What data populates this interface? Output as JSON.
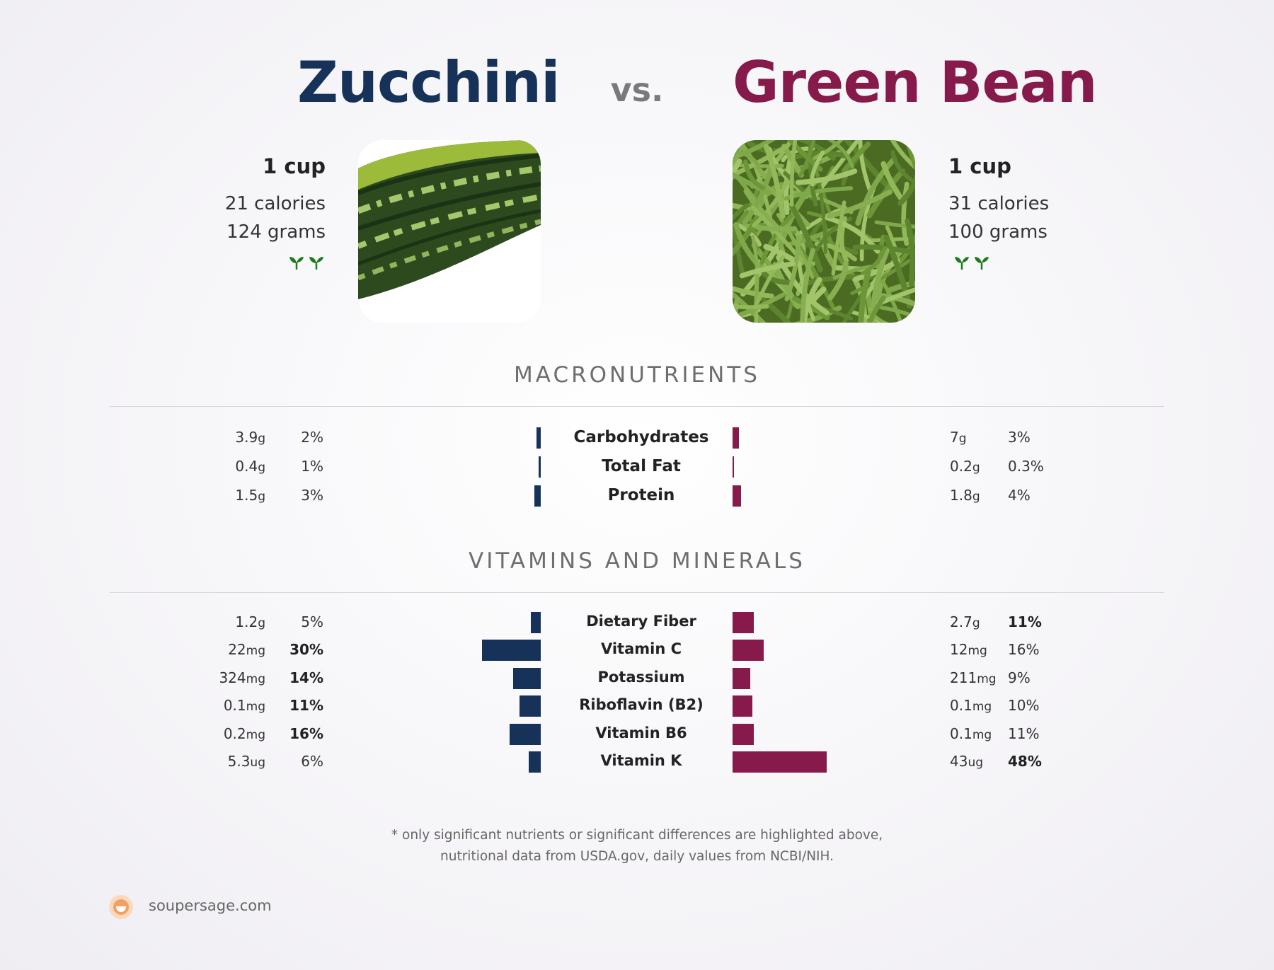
{
  "header": {
    "left_title": "Zucchini",
    "vs": "vs.",
    "right_title": "Green Bean"
  },
  "left_food": {
    "serving": "1 cup",
    "calories": "21 calories",
    "grams": "124 grams",
    "icon": "sprout-icon",
    "color": "#173258"
  },
  "right_food": {
    "serving": "1 cup",
    "calories": "31 calories",
    "grams": "100 grams",
    "icon": "sprout-icon",
    "color": "#851a4b"
  },
  "sections": {
    "macros_title": "MACRONUTRIENTS",
    "vitamins_title": "VITAMINS AND MINERALS"
  },
  "chart_data": [
    {
      "type": "bar",
      "title": "MACRONUTRIENTS",
      "categories": [
        "Carbohydrates",
        "Total Fat",
        "Protein"
      ],
      "series": [
        {
          "name": "Zucchini",
          "amounts": [
            "3.9",
            "0.4",
            "1.5"
          ],
          "units": [
            "g",
            "g",
            "g"
          ],
          "percent_labels": [
            "2%",
            "1%",
            "3%"
          ],
          "values": [
            2,
            1,
            3
          ],
          "bold": [
            false,
            false,
            false
          ]
        },
        {
          "name": "Green Bean",
          "amounts": [
            "7",
            "0.2",
            "1.8"
          ],
          "units": [
            "g",
            "g",
            "g"
          ],
          "percent_labels": [
            "3%",
            "0.3%",
            "4%"
          ],
          "values": [
            3,
            0.3,
            4
          ],
          "bold": [
            false,
            false,
            false
          ]
        }
      ]
    },
    {
      "type": "bar",
      "title": "VITAMINS AND MINERALS",
      "categories": [
        "Dietary Fiber",
        "Vitamin C",
        "Potassium",
        "Riboflavin (B2)",
        "Vitamin B6",
        "Vitamin K"
      ],
      "series": [
        {
          "name": "Zucchini",
          "amounts": [
            "1.2",
            "22",
            "324",
            "0.1",
            "0.2",
            "5.3"
          ],
          "units": [
            "g",
            "mg",
            "mg",
            "mg",
            "mg",
            "ug"
          ],
          "percent_labels": [
            "5%",
            "30%",
            "14%",
            "11%",
            "16%",
            "6%"
          ],
          "values": [
            5,
            30,
            14,
            11,
            16,
            6
          ],
          "bold": [
            false,
            true,
            true,
            true,
            true,
            false
          ]
        },
        {
          "name": "Green Bean",
          "amounts": [
            "2.7",
            "12",
            "211",
            "0.1",
            "0.1",
            "43"
          ],
          "units": [
            "g",
            "mg",
            "mg",
            "mg",
            "mg",
            "ug"
          ],
          "percent_labels": [
            "11%",
            "16%",
            "9%",
            "10%",
            "11%",
            "48%"
          ],
          "values": [
            11,
            16,
            9,
            10,
            11,
            48
          ],
          "bold": [
            true,
            false,
            false,
            false,
            false,
            true
          ]
        }
      ]
    }
  ],
  "footnote": {
    "line1": "* only significant nutrients or significant differences are highlighted above,",
    "line2": "nutritional data from USDA.gov, daily values from NCBI/NIH."
  },
  "brand": {
    "name": "soupersage.com",
    "logo": "soupersage-logo-icon"
  }
}
